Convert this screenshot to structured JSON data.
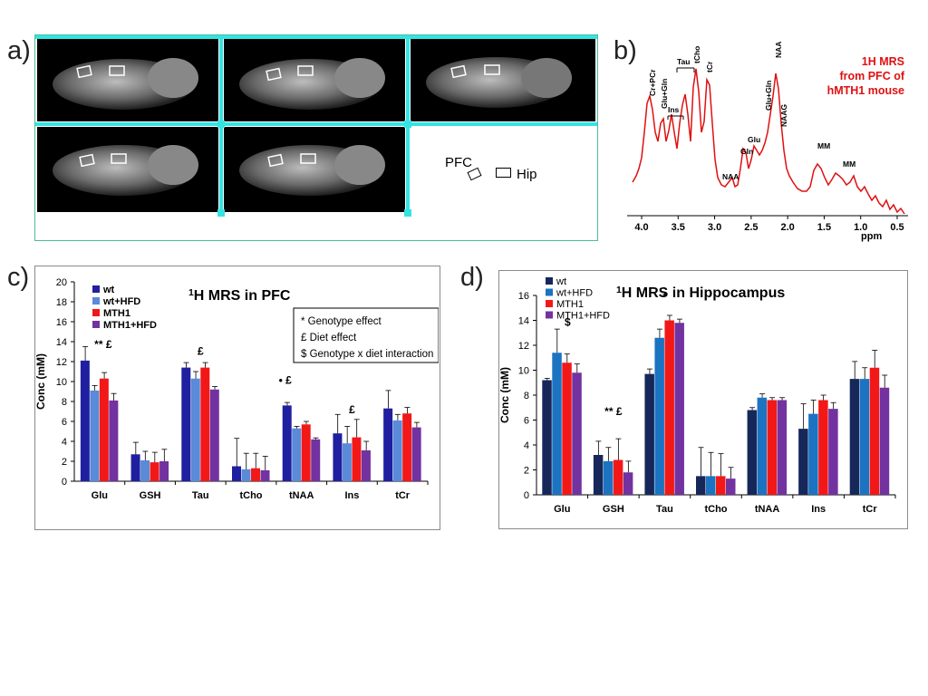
{
  "panels": {
    "a": "a)",
    "b": "b)",
    "c": "c)",
    "d": "d)"
  },
  "mri": {
    "slices": 5,
    "roi_labels": [
      "PFC",
      "Hip"
    ]
  },
  "spectrum": {
    "title_lines": [
      "1H MRS",
      "from PFC of",
      "hMTH1 mouse"
    ],
    "xlabel": "ppm",
    "ticks": [
      "4.0",
      "3.5",
      "3.0",
      "2.5",
      "2.0",
      "1.5",
      "1.0",
      "0.5"
    ],
    "peak_labels": [
      "Cr+PCr",
      "Glu+Gln",
      "Ins",
      "Tau",
      "tCho",
      "tCr",
      "NAA",
      "Gln",
      "Glu",
      "Glu+Gln",
      "NAA",
      "NAAG",
      "MM",
      "MM"
    ],
    "color": "#e01010"
  },
  "chart_data": [
    {
      "type": "bar",
      "title_sup": "1",
      "title": "H MRS in PFC",
      "ylabel": "Conc (mM)",
      "xlabel": "",
      "ylim": [
        0,
        20
      ],
      "yticks": [
        "0",
        "2",
        "4",
        "6",
        "8",
        "10",
        "12",
        "14",
        "16",
        "18",
        "20"
      ],
      "categories": [
        "Glu",
        "GSH",
        "Tau",
        "tCho",
        "tNAA",
        "Ins",
        "tCr"
      ],
      "series": [
        {
          "name": "wt",
          "color": "#1f1fa0",
          "values": [
            12.1,
            2.7,
            11.4,
            1.5,
            7.6,
            4.8,
            7.3
          ],
          "errors": [
            1.4,
            1.2,
            0.5,
            2.8,
            0.3,
            1.9,
            1.8
          ]
        },
        {
          "name": "wt+HFD",
          "color": "#5a8ad8",
          "values": [
            9.1,
            2.1,
            10.3,
            1.2,
            5.3,
            3.8,
            6.1
          ],
          "errors": [
            0.5,
            0.9,
            0.7,
            1.6,
            0.2,
            1.7,
            0.6
          ]
        },
        {
          "name": "MTH1",
          "color": "#f21818",
          "values": [
            10.3,
            1.9,
            11.4,
            1.3,
            5.7,
            4.4,
            6.8
          ],
          "errors": [
            0.6,
            1.0,
            0.5,
            1.5,
            0.3,
            1.8,
            0.6
          ]
        },
        {
          "name": "MTH1+HFD",
          "color": "#7232a0",
          "values": [
            8.1,
            2.0,
            9.2,
            1.1,
            4.2,
            3.1,
            5.4
          ],
          "errors": [
            0.7,
            1.2,
            0.3,
            1.4,
            0.15,
            0.9,
            0.5
          ]
        }
      ],
      "annotations": [
        "** £",
        "",
        "£",
        "",
        "•    £",
        "£",
        ""
      ],
      "legend_box": [
        "* Genotype effect",
        "£ Diet effect",
        "$ Genotype x diet interaction"
      ],
      "legend_position": "top-left"
    },
    {
      "type": "bar",
      "title_sup": "1",
      "title": "H MRS in Hippocampus",
      "ylabel": "Conc (mM)",
      "xlabel": "",
      "ylim": [
        0,
        16
      ],
      "yticks": [
        "0",
        "2",
        "4",
        "6",
        "8",
        "10",
        "12",
        "14",
        "16"
      ],
      "categories": [
        "Glu",
        "GSH",
        "Tau",
        "tCho",
        "tNAA",
        "Ins",
        "tCr"
      ],
      "series": [
        {
          "name": "wt",
          "color": "#16285a",
          "values": [
            9.2,
            3.2,
            9.7,
            1.5,
            6.8,
            5.3,
            9.3
          ],
          "errors": [
            0.15,
            1.1,
            0.4,
            2.3,
            0.2,
            2.0,
            1.4
          ]
        },
        {
          "name": "wt+HFD",
          "color": "#1b73c2",
          "values": [
            11.4,
            2.7,
            12.6,
            1.5,
            7.8,
            6.5,
            9.3
          ],
          "errors": [
            1.9,
            1.1,
            0.7,
            1.9,
            0.3,
            1.1,
            0.9
          ]
        },
        {
          "name": "MTH1",
          "color": "#f21818",
          "values": [
            10.6,
            2.8,
            14.0,
            1.5,
            7.6,
            7.6,
            10.2
          ],
          "errors": [
            0.7,
            1.7,
            0.4,
            1.8,
            0.2,
            0.4,
            1.4
          ]
        },
        {
          "name": "MTH1+HFD",
          "color": "#7232a0",
          "values": [
            9.8,
            1.8,
            13.8,
            1.3,
            7.6,
            6.9,
            8.6
          ],
          "errors": [
            0.7,
            0.9,
            0.3,
            0.9,
            0.2,
            0.5,
            1.0
          ]
        }
      ],
      "annotations": [
        "$",
        "** £",
        "*",
        "",
        "",
        "",
        ""
      ],
      "legend_position": "top-left"
    }
  ]
}
